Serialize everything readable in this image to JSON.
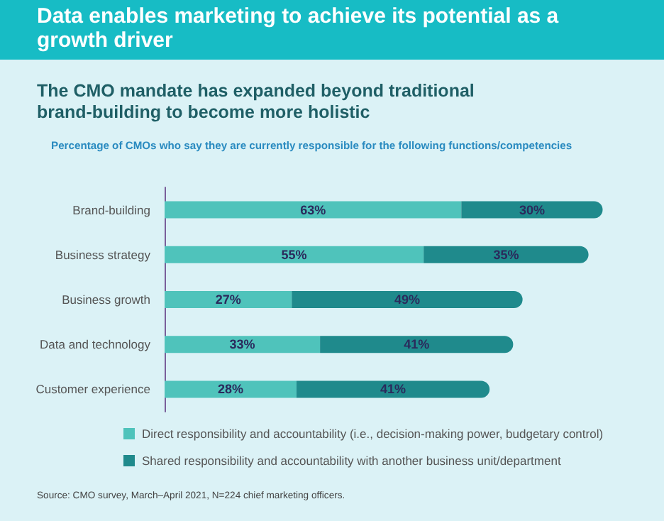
{
  "chart_data": {
    "type": "bar",
    "orientation": "horizontal",
    "stacked": true,
    "tick_labels": "y",
    "legend": "bottom",
    "title": "Data enables marketing to achieve its potential as a growth driver",
    "subtitle": "The CMO mandate has expanded beyond traditional brand-building to become more holistic",
    "annotations": [
      "Percentage of CMOs who say they are currently responsible for the following functions/competencies",
      "Source: CMO survey, March–April 2021, N=224 chief marketing officers."
    ],
    "categories": [
      "Brand-building",
      "Business strategy",
      "Business growth",
      "Data and technology",
      "Customer experience"
    ],
    "series": [
      {
        "name": "Direct responsibility and accountability (i.e., decision-making power, budgetary control)",
        "color": "#4fc3bb",
        "values": [
          63,
          55,
          27,
          33,
          28
        ],
        "value_labels": [
          "63%",
          "55%",
          "27%",
          "33%",
          "28%"
        ]
      },
      {
        "name": "Shared responsibility and accountability with another business unit/department",
        "color": "#1f8a8c",
        "values": [
          30,
          35,
          49,
          41,
          41
        ],
        "value_labels": [
          "30%",
          "35%",
          "49%",
          "41%",
          "41%"
        ]
      }
    ]
  }
}
